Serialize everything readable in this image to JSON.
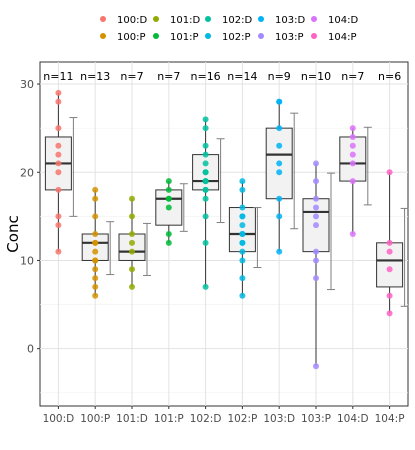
{
  "chart_data": {
    "type": "box",
    "categories": [
      "100:D",
      "100:P",
      "101:D",
      "101:P",
      "102:D",
      "102:P",
      "103:D",
      "103:P",
      "104:D",
      "104:P"
    ],
    "ylabel": "Conc",
    "xlabel": "",
    "ylim": [
      -6.5,
      32.5
    ],
    "yticks": [
      0,
      10,
      20,
      30
    ],
    "grid": true,
    "legend_position": "top",
    "n_labels": [
      "n=11",
      "n=13",
      "n=7",
      "n=7",
      "n=16",
      "n=14",
      "n=9",
      "n=10",
      "n=7",
      "n=6"
    ],
    "colors": [
      "#F8766D",
      "#D39200",
      "#93AA00",
      "#00BA38",
      "#00C19F",
      "#00B9E3",
      "#00B3F5",
      "#A58AFF",
      "#DB72FB",
      "#FF61C3"
    ],
    "boxes": [
      {
        "min": 11,
        "q1": 18,
        "median": 21,
        "q3": 24,
        "max": 29
      },
      {
        "min": 6,
        "q1": 10,
        "median": 12,
        "q3": 13,
        "max": 18
      },
      {
        "min": 7,
        "q1": 10,
        "median": 11,
        "q3": 13,
        "max": 17
      },
      {
        "min": 12,
        "q1": 14,
        "median": 17,
        "q3": 18,
        "max": 19
      },
      {
        "min": 7,
        "q1": 18,
        "median": 19,
        "q3": 22,
        "max": 26
      },
      {
        "min": 6,
        "q1": 11,
        "median": 13,
        "q3": 16,
        "max": 19
      },
      {
        "min": 11,
        "q1": 17,
        "median": 22,
        "q3": 25,
        "max": 28
      },
      {
        "min": -2,
        "q1": 11,
        "median": 15.5,
        "q3": 17,
        "max": 21
      },
      {
        "min": 13,
        "q1": 19,
        "median": 21,
        "q3": 24,
        "max": 25
      },
      {
        "min": 4,
        "q1": 7,
        "median": 10,
        "q3": 12,
        "max": 20
      }
    ],
    "points": [
      [
        29,
        28,
        25,
        23,
        22,
        21,
        20,
        18,
        15,
        14,
        11
      ],
      [
        18,
        17,
        15,
        13,
        12,
        12,
        11,
        10,
        10,
        9,
        8,
        7,
        6
      ],
      [
        17,
        15,
        13,
        12,
        11,
        9,
        7
      ],
      [
        19,
        18,
        17,
        17,
        16,
        13,
        12
      ],
      [
        26,
        25,
        23,
        22,
        21,
        20,
        20,
        19,
        19,
        19,
        18,
        18,
        17,
        15,
        12,
        7
      ],
      [
        19,
        18,
        16,
        15,
        15,
        14,
        13,
        13,
        12,
        12,
        11,
        10,
        8,
        6
      ],
      [
        28,
        28,
        25,
        23,
        21,
        20,
        17,
        15,
        11
      ],
      [
        21,
        19,
        17,
        16,
        15,
        14,
        11,
        10,
        8,
        -2
      ],
      [
        25,
        24,
        23,
        22,
        21,
        19,
        13
      ],
      [
        20,
        12,
        11,
        9,
        6,
        4
      ]
    ],
    "errorbars": [
      {
        "lo": 15,
        "mid": 20.7,
        "hi": 26.2
      },
      {
        "lo": 8.4,
        "mid": 11.4,
        "hi": 14.4
      },
      {
        "lo": 8.3,
        "mid": 11.3,
        "hi": 14.2
      },
      {
        "lo": 13.3,
        "mid": 16,
        "hi": 18.7
      },
      {
        "lo": 14.3,
        "mid": 19,
        "hi": 23.8
      },
      {
        "lo": 9.2,
        "mid": 12.6,
        "hi": 16
      },
      {
        "lo": 13.6,
        "mid": 20.2,
        "hi": 26.7
      },
      {
        "lo": 6.7,
        "mid": 13.3,
        "hi": 19.9
      },
      {
        "lo": 16.3,
        "mid": 20.8,
        "hi": 25.1
      },
      {
        "lo": 4.8,
        "mid": 10.3,
        "hi": 15.9
      }
    ]
  },
  "legend": {
    "items": [
      {
        "label": "100:D",
        "color": "#F8766D"
      },
      {
        "label": "101:D",
        "color": "#93AA00"
      },
      {
        "label": "102:D",
        "color": "#00C19F"
      },
      {
        "label": "103:D",
        "color": "#00B3F5"
      },
      {
        "label": "104:D",
        "color": "#DB72FB"
      },
      {
        "label": "100:P",
        "color": "#D39200"
      },
      {
        "label": "101:P",
        "color": "#00BA38"
      },
      {
        "label": "102:P",
        "color": "#00B9E3"
      },
      {
        "label": "103:P",
        "color": "#A58AFF"
      },
      {
        "label": "104:P",
        "color": "#FF61C3"
      }
    ]
  }
}
